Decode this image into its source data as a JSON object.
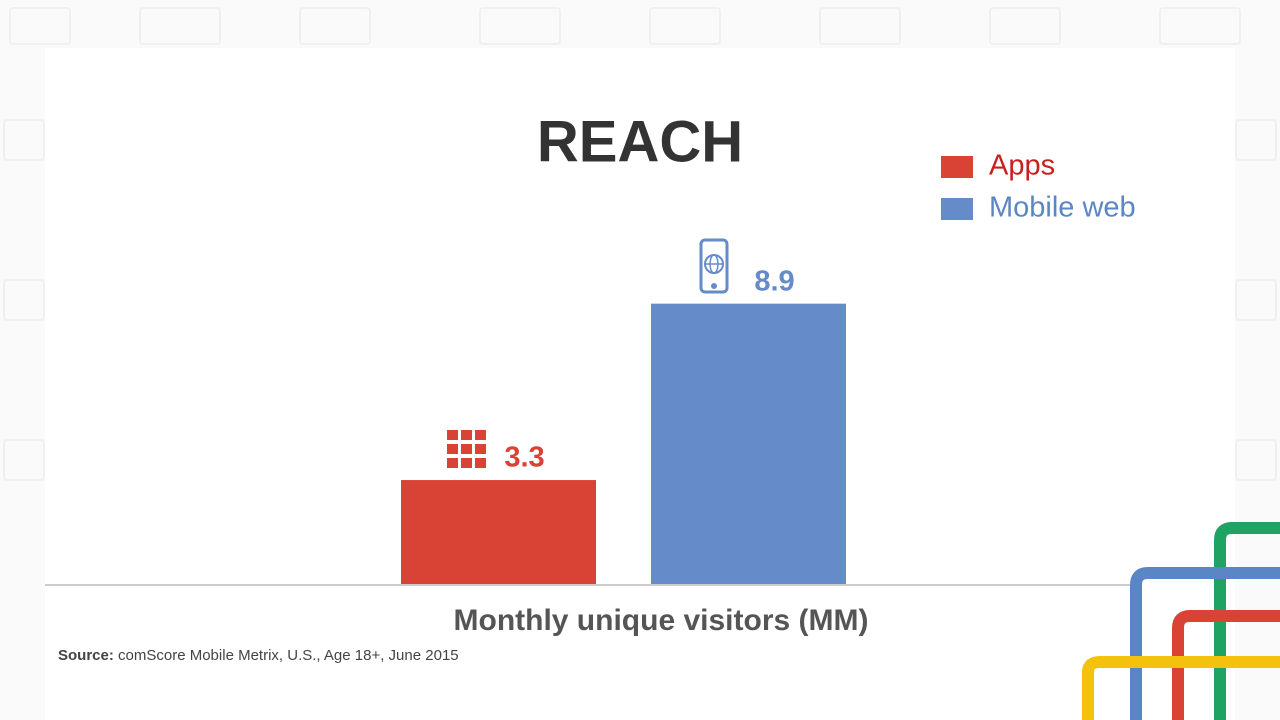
{
  "chart_data": {
    "type": "bar",
    "title": "REACH",
    "categories": [
      null
    ],
    "x_label": "Monthly unique visitors (MM)",
    "series": [
      {
        "name": "Apps",
        "color": "#d94336",
        "values": [
          3.3
        ]
      },
      {
        "name": "Mobile web",
        "color": "#658cc8",
        "values": [
          8.9
        ]
      }
    ],
    "legend": "top-right",
    "source_label": "Source:",
    "source": "comScore Mobile Metrix, U.S., Age 18+, June 2015"
  }
}
